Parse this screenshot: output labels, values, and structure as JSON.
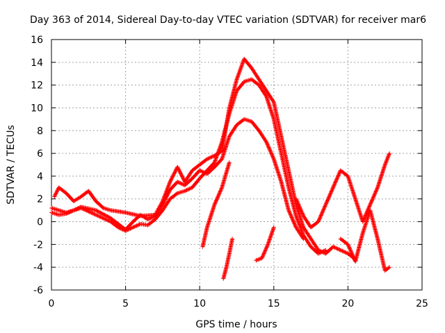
{
  "chart_data": {
    "type": "scatter",
    "title": "Day 363 of 2014, Sidereal Day-to-day VTEC variation (SDTVAR) for receiver mar6",
    "xlabel": "GPS time / hours",
    "ylabel": "SDTVAR / TECUs",
    "xlim": [
      0,
      25
    ],
    "ylim": [
      -6,
      16
    ],
    "xticks": [
      0,
      5,
      10,
      15,
      20,
      25
    ],
    "yticks": [
      -6,
      -4,
      -2,
      0,
      2,
      4,
      6,
      8,
      10,
      12,
      14,
      16
    ],
    "grid": true,
    "marker": "plus",
    "color": "#ff0000",
    "series": [
      {
        "name": "track-1",
        "x": [
          0.0,
          0.5,
          1.0,
          1.5,
          2.0,
          3.0,
          4.0,
          5.0,
          5.5,
          6.0,
          6.5,
          7.0,
          7.5,
          8.0,
          8.5,
          9.0,
          9.5,
          10.0,
          10.5,
          11.0,
          11.5,
          12.0,
          12.5,
          13.0,
          13.5,
          14.0,
          14.5,
          15.0,
          15.5,
          16.0,
          16.5,
          17.0
        ],
        "y": [
          1.2,
          1.0,
          0.8,
          1.0,
          1.3,
          1.0,
          0.3,
          -0.7,
          0.0,
          0.6,
          0.2,
          0.5,
          1.5,
          2.8,
          3.5,
          3.2,
          3.8,
          4.5,
          4.2,
          4.8,
          5.5,
          7.5,
          8.5,
          9.0,
          8.8,
          8.0,
          7.0,
          5.5,
          3.5,
          1.0,
          -0.5,
          -1.5
        ]
      },
      {
        "name": "track-2",
        "x": [
          0.0,
          0.5,
          1.0,
          1.5,
          2.0,
          3.0,
          4.0,
          4.5,
          5.0,
          5.5,
          6.0,
          6.5,
          7.0,
          7.5,
          8.0,
          8.5,
          9.0,
          9.5,
          10.0,
          10.5,
          11.0,
          11.5,
          12.0,
          12.5,
          13.0,
          13.5,
          14.0,
          14.5,
          15.0,
          15.5,
          16.0,
          16.5,
          17.0,
          17.5,
          18.0,
          18.5
        ],
        "y": [
          0.8,
          0.6,
          0.7,
          1.0,
          1.2,
          0.6,
          0.0,
          -0.5,
          -0.8,
          -0.5,
          -0.2,
          -0.3,
          0.2,
          1.0,
          2.0,
          2.5,
          2.7,
          3.0,
          3.8,
          4.5,
          5.2,
          7.0,
          9.5,
          11.5,
          12.3,
          12.5,
          12.0,
          11.0,
          9.0,
          6.0,
          3.0,
          0.5,
          -1.2,
          -2.2,
          -2.8,
          -2.5
        ]
      },
      {
        "name": "track-3",
        "x": [
          0.2,
          0.5,
          1.0,
          1.5,
          2.0,
          2.5,
          3.0,
          3.5,
          4.0,
          5.0,
          6.0,
          7.0,
          7.5,
          8.0,
          8.5,
          9.0,
          9.5,
          10.0,
          10.5,
          11.0,
          11.5,
          12.0,
          12.5,
          13.0,
          13.5,
          14.0,
          14.5,
          15.0,
          15.5,
          16.0,
          16.5,
          17.0,
          17.5,
          18.0,
          18.5,
          19.0,
          19.5,
          20.0,
          20.5
        ],
        "y": [
          2.2,
          3.0,
          2.5,
          1.8,
          2.2,
          2.7,
          1.8,
          1.2,
          1.0,
          0.8,
          0.5,
          0.6,
          1.8,
          3.5,
          4.8,
          3.5,
          4.5,
          5.0,
          5.5,
          5.8,
          6.2,
          10.0,
          12.5,
          14.3,
          13.5,
          12.5,
          11.5,
          10.5,
          7.5,
          4.5,
          1.5,
          -0.5,
          -1.5,
          -2.5,
          -2.8,
          -2.2,
          -2.5,
          -2.8,
          -3.3
        ]
      },
      {
        "name": "track-4",
        "x": [
          10.2,
          10.5,
          11.0,
          11.5,
          12.0
        ],
        "y": [
          -2.2,
          -0.5,
          1.5,
          3.0,
          5.2
        ]
      },
      {
        "name": "track-5",
        "x": [
          11.6,
          11.8,
          12.0,
          12.2
        ],
        "y": [
          -5.0,
          -4.0,
          -2.8,
          -1.5
        ]
      },
      {
        "name": "track-6",
        "x": [
          13.8,
          14.2,
          14.6,
          15.0
        ],
        "y": [
          -3.4,
          -3.2,
          -2.0,
          -0.5
        ]
      },
      {
        "name": "track-7",
        "x": [
          16.5,
          17.0,
          17.5,
          18.0,
          18.5,
          19.0,
          19.5,
          20.0,
          20.5,
          21.0,
          21.5,
          22.0,
          22.5,
          22.8
        ],
        "y": [
          2.0,
          0.5,
          -0.5,
          0.0,
          1.5,
          3.0,
          4.5,
          4.0,
          2.0,
          0.0,
          1.5,
          3.0,
          5.0,
          6.0
        ]
      },
      {
        "name": "track-8",
        "x": [
          19.5,
          20.0,
          20.5,
          21.0,
          21.5,
          22.0,
          22.5,
          22.8
        ],
        "y": [
          -1.5,
          -2.0,
          -3.5,
          -1.0,
          1.0,
          -1.5,
          -4.3,
          -4.0
        ]
      }
    ]
  }
}
